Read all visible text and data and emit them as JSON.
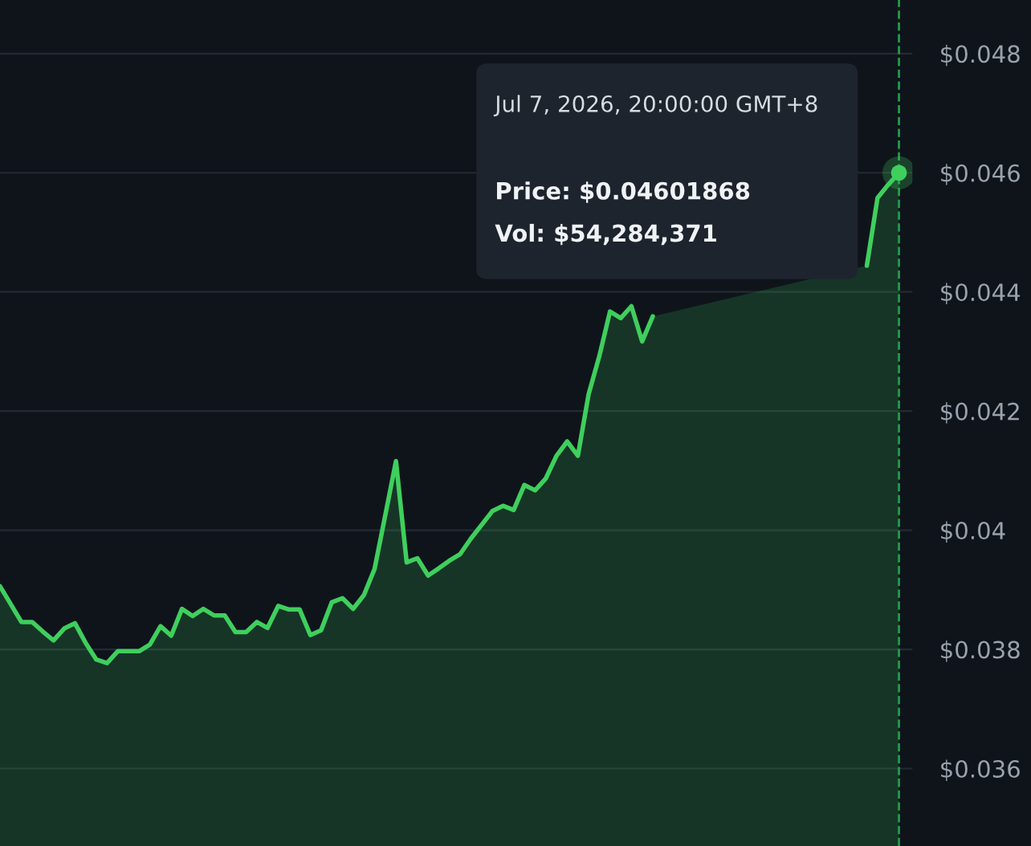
{
  "chart_data": {
    "type": "area",
    "categories": [
      null,
      null,
      null,
      null,
      null,
      null,
      null,
      null,
      null,
      null,
      null,
      null,
      null,
      null,
      null,
      null,
      null,
      null,
      null,
      null,
      null,
      null,
      null,
      null,
      null,
      null,
      null,
      null,
      null,
      null,
      null,
      null,
      null,
      null,
      null,
      null,
      null,
      null,
      null,
      null,
      null,
      null,
      null,
      null,
      null,
      null,
      null,
      null,
      null,
      null,
      null,
      null,
      null,
      null,
      null,
      null,
      null,
      null,
      null,
      null,
      null,
      null,
      null,
      null,
      null,
      null,
      null,
      null,
      null,
      null,
      null,
      null,
      null,
      null,
      null,
      null,
      null,
      null,
      null,
      null,
      null,
      null,
      null,
      null,
      null
    ],
    "series": [
      {
        "color": "#3fcf5d",
        "values": [
          0.03906,
          0.03876,
          0.03846,
          0.03846,
          0.0383,
          0.03815,
          0.03835,
          0.03844,
          0.03811,
          0.03783,
          0.03777,
          0.03797,
          0.03797,
          0.03797,
          0.03808,
          0.03839,
          0.03823,
          0.03868,
          0.03856,
          0.03868,
          0.03857,
          0.03857,
          0.03829,
          0.03829,
          0.03846,
          0.03836,
          0.03873,
          0.03867,
          0.03867,
          0.03824,
          0.03832,
          0.03879,
          0.03886,
          0.03868,
          0.03891,
          0.03935,
          0.04025,
          0.04116,
          0.03946,
          0.03953,
          0.03924,
          0.03936,
          0.03949,
          0.0396,
          0.03986,
          0.04009,
          0.04032,
          0.04041,
          0.04034,
          0.04076,
          0.04067,
          0.04087,
          0.04125,
          0.04149,
          0.04125,
          0.04228,
          0.04292,
          0.04367,
          0.04356,
          0.04376,
          0.04317,
          0.04359,
          null,
          null,
          null,
          null,
          null,
          null,
          null,
          null,
          null,
          null,
          null,
          null,
          null,
          null,
          null,
          null,
          null,
          null,
          null,
          0.04444,
          0.04558,
          0.0458,
          0.046
        ]
      },
      {
        "type": "scatter",
        "color": "#3fcf5d",
        "values": [
          null,
          null,
          null,
          null,
          null,
          null,
          null,
          null,
          null,
          null,
          null,
          null,
          null,
          null,
          null,
          null,
          null,
          null,
          null,
          null,
          null,
          null,
          null,
          null,
          null,
          null,
          null,
          null,
          null,
          null,
          null,
          null,
          null,
          null,
          null,
          null,
          null,
          null,
          null,
          null,
          null,
          null,
          null,
          null,
          null,
          null,
          null,
          null,
          null,
          null,
          null,
          null,
          null,
          null,
          null,
          null,
          null,
          null,
          null,
          null,
          null,
          null,
          null,
          null,
          null,
          null,
          null,
          null,
          null,
          null,
          null,
          null,
          null,
          null,
          null,
          null,
          null,
          null,
          null,
          null,
          null,
          null,
          null,
          null,
          0.046
        ]
      }
    ],
    "ylim": [
      0.0347,
      0.0489
    ],
    "yticks": [
      {
        "value": 0.036,
        "label": "$0.036"
      },
      {
        "value": 0.038,
        "label": "$0.038"
      },
      {
        "value": 0.04,
        "label": "$0.04"
      },
      {
        "value": 0.042,
        "label": "$0.042"
      },
      {
        "value": 0.044,
        "label": "$0.044"
      },
      {
        "value": 0.046,
        "label": "$0.046"
      },
      {
        "value": 0.048,
        "label": "$0.048"
      }
    ],
    "grid": "y",
    "tick_labels": "y",
    "annotations": [
      "Jul 7, 2026, 20:00:00 GMT+8",
      "Price: $0.04601868",
      "Vol: $54,284,371"
    ]
  }
}
